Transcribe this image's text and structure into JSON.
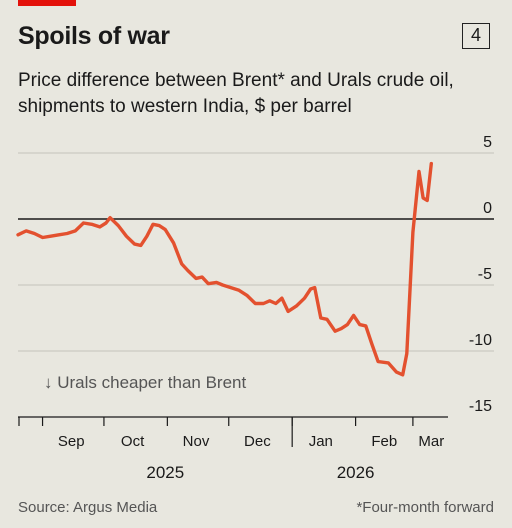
{
  "header": {
    "title": "Spoils of war",
    "chart_number": "4",
    "subtitle": "Price difference between Brent* and Urals crude oil, shipments to western India, $ per barrel"
  },
  "footer": {
    "source": "Source: Argus Media",
    "footnote": "*Four-month forward"
  },
  "colors": {
    "line": "#e3512f",
    "accent": "#e3120b"
  },
  "chart_data": {
    "type": "line",
    "title": "Spoils of war",
    "subtitle": "Price difference between Brent* and Urals crude oil, shipments to western India, $ per barrel",
    "xlabel": "",
    "ylabel": "",
    "ylim": [
      -15,
      5
    ],
    "xlim": [
      "2025-08-20",
      "2026-03-25"
    ],
    "yticks": [
      5,
      0,
      -5,
      -10,
      -15
    ],
    "grid": true,
    "x_month_labels": [
      {
        "label": "Sep",
        "date": "2025-09-15"
      },
      {
        "label": "Oct",
        "date": "2025-10-15"
      },
      {
        "label": "Nov",
        "date": "2025-11-15"
      },
      {
        "label": "Dec",
        "date": "2025-12-15"
      },
      {
        "label": "Jan",
        "date": "2026-01-15"
      },
      {
        "label": "Feb",
        "date": "2026-02-15"
      },
      {
        "label": "Mar",
        "date": "2026-03-10"
      }
    ],
    "x_year_labels": [
      {
        "label": "2025",
        "date": "2025-10-31"
      },
      {
        "label": "2026",
        "date": "2026-02-01"
      }
    ],
    "annotation": "↓ Urals cheaper than Brent",
    "series": [
      {
        "points": [
          [
            "2025-08-20",
            -1.2
          ],
          [
            "2025-08-24",
            -0.9
          ],
          [
            "2025-08-28",
            -1.1
          ],
          [
            "2025-09-01",
            -1.4
          ],
          [
            "2025-09-05",
            -1.3
          ],
          [
            "2025-09-09",
            -1.2
          ],
          [
            "2025-09-13",
            -1.1
          ],
          [
            "2025-09-17",
            -0.9
          ],
          [
            "2025-09-21",
            -0.3
          ],
          [
            "2025-09-25",
            -0.4
          ],
          [
            "2025-09-29",
            -0.6
          ],
          [
            "2025-10-02",
            -0.3
          ],
          [
            "2025-10-04",
            0.1
          ],
          [
            "2025-10-08",
            -0.5
          ],
          [
            "2025-10-12",
            -1.3
          ],
          [
            "2025-10-16",
            -1.9
          ],
          [
            "2025-10-19",
            -2.0
          ],
          [
            "2025-10-22",
            -1.3
          ],
          [
            "2025-10-25",
            -0.4
          ],
          [
            "2025-10-28",
            -0.5
          ],
          [
            "2025-10-31",
            -0.8
          ],
          [
            "2025-11-04",
            -1.8
          ],
          [
            "2025-11-08",
            -3.4
          ],
          [
            "2025-11-11",
            -3.9
          ],
          [
            "2025-11-15",
            -4.5
          ],
          [
            "2025-11-18",
            -4.4
          ],
          [
            "2025-11-21",
            -4.9
          ],
          [
            "2025-11-25",
            -4.8
          ],
          [
            "2025-11-28",
            -5.0
          ],
          [
            "2025-12-02",
            -5.2
          ],
          [
            "2025-12-06",
            -5.4
          ],
          [
            "2025-12-10",
            -5.8
          ],
          [
            "2025-12-14",
            -6.4
          ],
          [
            "2025-12-18",
            -6.4
          ],
          [
            "2025-12-21",
            -6.2
          ],
          [
            "2025-12-24",
            -6.4
          ],
          [
            "2025-12-27",
            -6.0
          ],
          [
            "2025-12-30",
            -7.0
          ],
          [
            "2026-01-03",
            -6.6
          ],
          [
            "2026-01-07",
            -6.0
          ],
          [
            "2026-01-10",
            -5.3
          ],
          [
            "2026-01-12",
            -5.2
          ],
          [
            "2026-01-15",
            -7.5
          ],
          [
            "2026-01-18",
            -7.6
          ],
          [
            "2026-01-22",
            -8.5
          ],
          [
            "2026-01-25",
            -8.3
          ],
          [
            "2026-01-28",
            -8.0
          ],
          [
            "2026-01-31",
            -7.3
          ],
          [
            "2026-02-03",
            -8.0
          ],
          [
            "2026-02-06",
            -8.1
          ],
          [
            "2026-02-09",
            -9.5
          ],
          [
            "2026-02-12",
            -10.8
          ],
          [
            "2026-02-17",
            -10.9
          ],
          [
            "2026-02-21",
            -11.6
          ],
          [
            "2026-02-24",
            -11.8
          ],
          [
            "2026-02-26",
            -10.2
          ],
          [
            "2026-03-01",
            -1.0
          ],
          [
            "2026-03-04",
            3.6
          ],
          [
            "2026-03-06",
            1.6
          ],
          [
            "2026-03-08",
            1.4
          ],
          [
            "2026-03-10",
            4.2
          ]
        ]
      }
    ]
  }
}
